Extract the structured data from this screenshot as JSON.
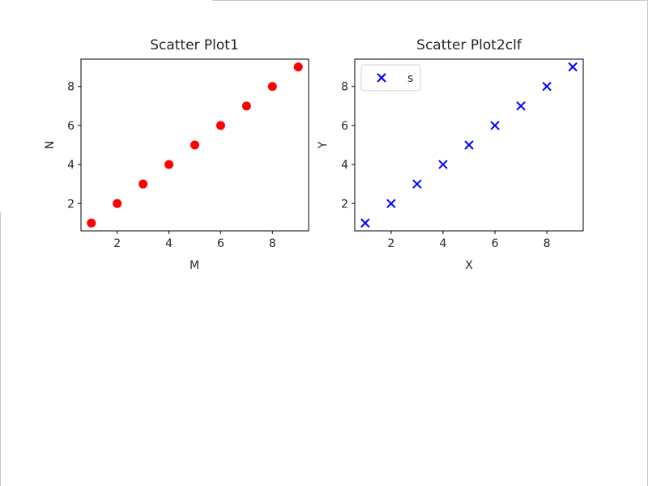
{
  "chart_data": [
    {
      "type": "scatter",
      "title": "Scatter Plot1",
      "xlabel": "M",
      "ylabel": "N",
      "x": [
        1,
        2,
        3,
        4,
        5,
        6,
        7,
        8,
        9
      ],
      "y": [
        1,
        2,
        3,
        4,
        5,
        6,
        7,
        8,
        9
      ],
      "marker": "circle",
      "color": "#ff0000",
      "xlim": [
        0.6,
        9.4
      ],
      "ylim": [
        0.6,
        9.4
      ],
      "xticks": [
        2,
        4,
        6,
        8
      ],
      "yticks": [
        2,
        4,
        6,
        8
      ],
      "grid": false,
      "legend": null
    },
    {
      "type": "scatter",
      "title": "Scatter Plot2clf",
      "xlabel": "X",
      "ylabel": "Y",
      "series": [
        {
          "name": "s",
          "x": [
            1,
            2,
            3,
            4,
            5,
            6,
            7,
            8,
            9
          ],
          "y": [
            1,
            2,
            3,
            4,
            5,
            6,
            7,
            8,
            9
          ],
          "marker": "x",
          "color": "#0000ff"
        }
      ],
      "xlim": [
        0.6,
        9.4
      ],
      "ylim": [
        0.6,
        9.4
      ],
      "xticks": [
        2,
        4,
        6,
        8
      ],
      "yticks": [
        2,
        4,
        6,
        8
      ],
      "grid": false,
      "legend": "upper-left"
    }
  ]
}
